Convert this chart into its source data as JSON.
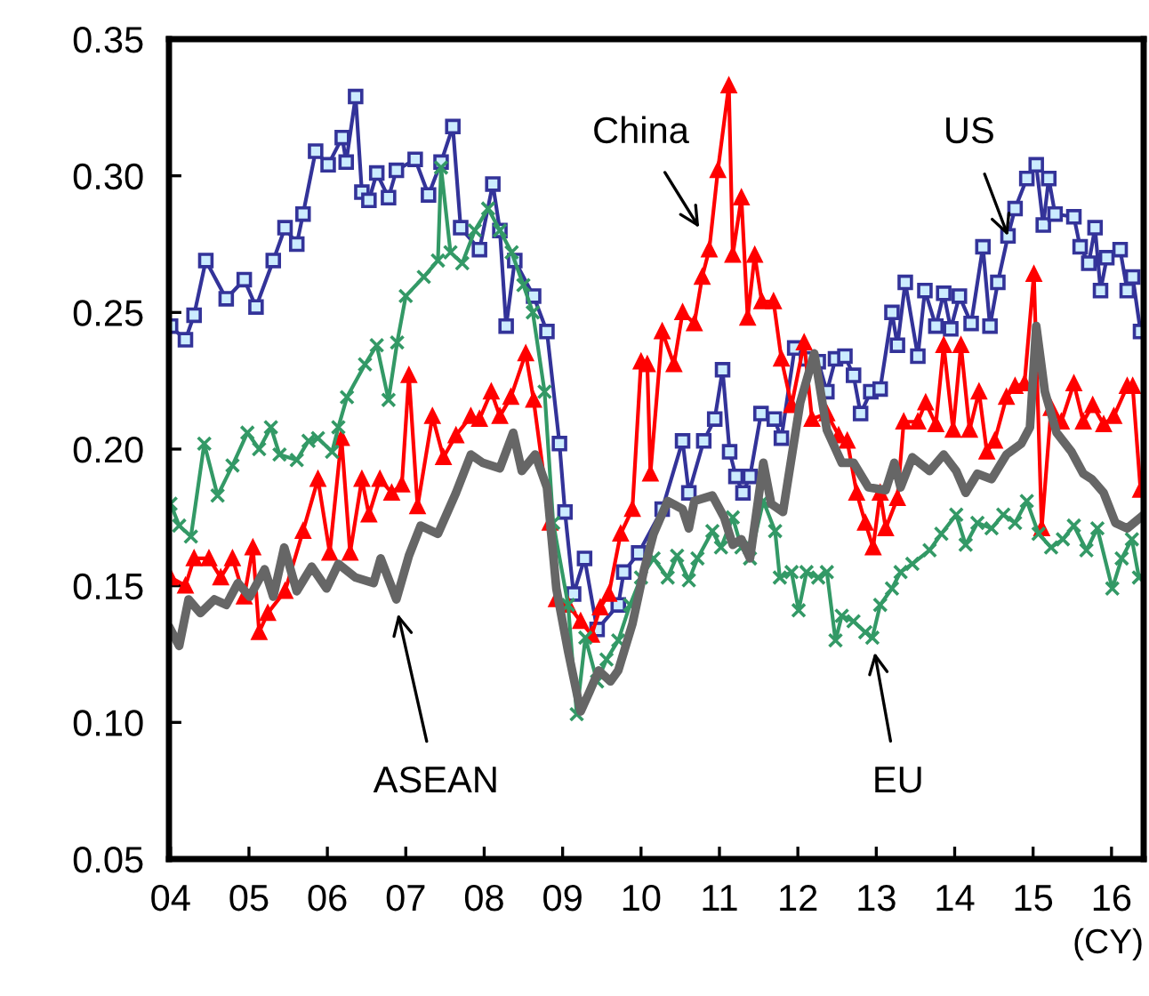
{
  "chart_data": {
    "type": "line",
    "xlabel": "(CY)",
    "xlim": [
      2003.98,
      2016.41
    ],
    "ylim": [
      0.05,
      0.35
    ],
    "xticks": [
      {
        "value": 2004,
        "label": "04"
      },
      {
        "value": 2005,
        "label": "05"
      },
      {
        "value": 2006,
        "label": "06"
      },
      {
        "value": 2007,
        "label": "07"
      },
      {
        "value": 2008,
        "label": "08"
      },
      {
        "value": 2009,
        "label": "09"
      },
      {
        "value": 2010,
        "label": "10"
      },
      {
        "value": 2011,
        "label": "11"
      },
      {
        "value": 2012,
        "label": "12"
      },
      {
        "value": 2013,
        "label": "13"
      },
      {
        "value": 2014,
        "label": "14"
      },
      {
        "value": 2015,
        "label": "15"
      },
      {
        "value": 2016,
        "label": "16"
      }
    ],
    "yticks": [
      {
        "value": 0.05,
        "label": "0.05"
      },
      {
        "value": 0.1,
        "label": "0.10"
      },
      {
        "value": 0.15,
        "label": "0.15"
      },
      {
        "value": 0.2,
        "label": "0.20"
      },
      {
        "value": 0.25,
        "label": "0.25"
      },
      {
        "value": 0.3,
        "label": "0.30"
      },
      {
        "value": 0.35,
        "label": "0.35"
      }
    ],
    "grid": false,
    "legend": false,
    "line_style": "solid",
    "series": [
      {
        "color": "#333399",
        "marker": "square",
        "x": [
          2004.0,
          2004.19,
          2004.3,
          2004.45,
          2004.71,
          2004.94,
          2005.09,
          2005.31,
          2005.46,
          2005.61,
          2005.69,
          2005.85,
          2006.01,
          2006.19,
          2006.24,
          2006.36,
          2006.44,
          2006.53,
          2006.63,
          2006.78,
          2006.88,
          2007.12,
          2007.29,
          2007.45,
          2007.6,
          2007.7,
          2007.94,
          2008.11,
          2008.2,
          2008.28,
          2008.39,
          2008.63,
          2008.8,
          2008.96,
          2009.03,
          2009.14,
          2009.28,
          2009.44,
          2009.71,
          2009.78,
          2009.97,
          2010.27,
          2010.53,
          2010.61,
          2010.8,
          2010.94,
          2011.04,
          2011.13,
          2011.21,
          2011.3,
          2011.39,
          2011.53,
          2011.7,
          2011.79,
          2011.96,
          2012.11,
          2012.26,
          2012.37,
          2012.48,
          2012.6,
          2012.71,
          2012.8,
          2012.93,
          2013.05,
          2013.2,
          2013.27,
          2013.37,
          2013.53,
          2013.62,
          2013.76,
          2013.86,
          2013.95,
          2014.06,
          2014.21,
          2014.36,
          2014.45,
          2014.55,
          2014.68,
          2014.77,
          2014.92,
          2015.04,
          2015.13,
          2015.2,
          2015.28,
          2015.52,
          2015.6,
          2015.71,
          2015.79,
          2015.86,
          2015.94,
          2016.11,
          2016.2,
          2016.27,
          2016.37
        ],
        "values": [
          0.245,
          0.24,
          0.249,
          0.269,
          0.255,
          0.262,
          0.252,
          0.269,
          0.281,
          0.275,
          0.286,
          0.309,
          0.304,
          0.314,
          0.305,
          0.329,
          0.294,
          0.291,
          0.301,
          0.292,
          0.302,
          0.306,
          0.293,
          0.305,
          0.318,
          0.281,
          0.273,
          0.297,
          0.28,
          0.245,
          0.269,
          0.256,
          0.243,
          0.202,
          0.177,
          0.147,
          0.16,
          0.134,
          0.143,
          0.155,
          0.162,
          0.178,
          0.203,
          0.184,
          0.203,
          0.211,
          0.229,
          0.199,
          0.19,
          0.184,
          0.19,
          0.213,
          0.211,
          0.204,
          0.237,
          0.233,
          0.232,
          0.221,
          0.233,
          0.234,
          0.227,
          0.213,
          0.221,
          0.222,
          0.25,
          0.238,
          0.261,
          0.234,
          0.258,
          0.245,
          0.257,
          0.244,
          0.256,
          0.246,
          0.274,
          0.245,
          0.261,
          0.278,
          0.288,
          0.299,
          0.304,
          0.282,
          0.299,
          0.286,
          0.285,
          0.274,
          0.268,
          0.281,
          0.258,
          0.27,
          0.273,
          0.258,
          0.263,
          0.243
        ]
      },
      {
        "color": "#ff0000",
        "marker": "triangle",
        "x": [
          2004.0,
          2004.19,
          2004.3,
          2004.49,
          2004.64,
          2004.79,
          2004.94,
          2005.05,
          2005.13,
          2005.24,
          2005.46,
          2005.69,
          2005.88,
          2006.03,
          2006.18,
          2006.29,
          2006.44,
          2006.53,
          2006.67,
          2006.82,
          2006.95,
          2007.04,
          2007.15,
          2007.34,
          2007.48,
          2007.64,
          2007.83,
          2007.94,
          2008.09,
          2008.2,
          2008.34,
          2008.53,
          2008.63,
          2008.84,
          2008.92,
          2009.07,
          2009.23,
          2009.37,
          2009.48,
          2009.59,
          2009.74,
          2009.89,
          2010.0,
          2010.08,
          2010.12,
          2010.27,
          2010.42,
          2010.53,
          2010.68,
          2010.78,
          2010.87,
          2010.98,
          2011.12,
          2011.17,
          2011.28,
          2011.36,
          2011.45,
          2011.54,
          2011.69,
          2011.79,
          2011.92,
          2012.08,
          2012.18,
          2012.37,
          2012.52,
          2012.63,
          2012.75,
          2012.86,
          2012.96,
          2013.05,
          2013.12,
          2013.27,
          2013.35,
          2013.53,
          2013.63,
          2013.76,
          2013.86,
          2013.98,
          2014.08,
          2014.19,
          2014.31,
          2014.41,
          2014.51,
          2014.66,
          2014.77,
          2014.89,
          2015.01,
          2015.11,
          2015.23,
          2015.36,
          2015.52,
          2015.64,
          2015.76,
          2015.9,
          2016.03,
          2016.2,
          2016.27,
          2016.37
        ],
        "values": [
          0.153,
          0.15,
          0.16,
          0.16,
          0.153,
          0.16,
          0.146,
          0.164,
          0.133,
          0.14,
          0.148,
          0.17,
          0.189,
          0.162,
          0.204,
          0.162,
          0.189,
          0.176,
          0.189,
          0.184,
          0.187,
          0.227,
          0.179,
          0.212,
          0.197,
          0.205,
          0.212,
          0.211,
          0.221,
          0.212,
          0.219,
          0.235,
          0.218,
          0.173,
          0.145,
          0.143,
          0.137,
          0.132,
          0.142,
          0.147,
          0.169,
          0.178,
          0.232,
          0.231,
          0.191,
          0.243,
          0.231,
          0.25,
          0.246,
          0.263,
          0.273,
          0.302,
          0.333,
          0.271,
          0.292,
          0.248,
          0.271,
          0.254,
          0.254,
          0.233,
          0.216,
          0.239,
          0.211,
          0.213,
          0.205,
          0.203,
          0.184,
          0.173,
          0.164,
          0.184,
          0.171,
          0.182,
          0.21,
          0.21,
          0.217,
          0.209,
          0.238,
          0.207,
          0.238,
          0.207,
          0.221,
          0.199,
          0.203,
          0.219,
          0.223,
          0.224,
          0.264,
          0.171,
          0.215,
          0.21,
          0.224,
          0.21,
          0.216,
          0.209,
          0.212,
          0.223,
          0.223,
          0.185
        ]
      },
      {
        "color": "#339966",
        "marker": "cross",
        "x": [
          2004.0,
          2004.11,
          2004.26,
          2004.43,
          2004.6,
          2004.79,
          2004.98,
          2005.13,
          2005.28,
          2005.39,
          2005.61,
          2005.76,
          2005.88,
          2006.06,
          2006.14,
          2006.25,
          2006.48,
          2006.63,
          2006.78,
          2006.89,
          2007.0,
          2007.23,
          2007.41,
          2007.45,
          2007.57,
          2007.72,
          2007.88,
          2008.05,
          2008.2,
          2008.35,
          2008.5,
          2008.62,
          2008.77,
          2008.88,
          2009.07,
          2009.18,
          2009.29,
          2009.44,
          2009.56,
          2009.71,
          2009.86,
          2010.0,
          2010.16,
          2010.34,
          2010.46,
          2010.61,
          2010.72,
          2010.91,
          2011.02,
          2011.17,
          2011.28,
          2011.39,
          2011.56,
          2011.71,
          2011.77,
          2011.92,
          2012.01,
          2012.11,
          2012.26,
          2012.37,
          2012.48,
          2012.56,
          2012.71,
          2012.86,
          2012.95,
          2013.05,
          2013.2,
          2013.31,
          2013.46,
          2013.68,
          2013.83,
          2014.02,
          2014.14,
          2014.29,
          2014.47,
          2014.62,
          2014.77,
          2014.92,
          2015.07,
          2015.23,
          2015.38,
          2015.52,
          2015.68,
          2015.82,
          2016.01,
          2016.13,
          2016.26,
          2016.35
        ],
        "values": [
          0.18,
          0.172,
          0.168,
          0.202,
          0.183,
          0.194,
          0.206,
          0.2,
          0.208,
          0.198,
          0.196,
          0.203,
          0.204,
          0.199,
          0.208,
          0.219,
          0.231,
          0.238,
          0.218,
          0.239,
          0.256,
          0.263,
          0.269,
          0.303,
          0.272,
          0.268,
          0.28,
          0.288,
          0.28,
          0.272,
          0.26,
          0.25,
          0.221,
          0.173,
          0.143,
          0.103,
          0.131,
          0.115,
          0.123,
          0.13,
          0.143,
          0.153,
          0.16,
          0.153,
          0.161,
          0.152,
          0.16,
          0.17,
          0.164,
          0.175,
          0.164,
          0.16,
          0.181,
          0.17,
          0.153,
          0.155,
          0.141,
          0.155,
          0.153,
          0.155,
          0.13,
          0.139,
          0.137,
          0.133,
          0.131,
          0.143,
          0.149,
          0.155,
          0.158,
          0.163,
          0.169,
          0.176,
          0.165,
          0.173,
          0.171,
          0.176,
          0.173,
          0.181,
          0.169,
          0.164,
          0.167,
          0.172,
          0.163,
          0.171,
          0.149,
          0.16,
          0.167,
          0.153
        ]
      },
      {
        "color": "#666666",
        "marker": "none",
        "x": [
          2004.0,
          2004.11,
          2004.23,
          2004.38,
          2004.56,
          2004.71,
          2004.86,
          2005.01,
          2005.2,
          2005.31,
          2005.45,
          2005.61,
          2005.8,
          2005.99,
          2006.14,
          2006.36,
          2006.59,
          2006.68,
          2006.88,
          2007.04,
          2007.19,
          2007.41,
          2007.64,
          2007.83,
          2007.98,
          2008.2,
          2008.37,
          2008.48,
          2008.65,
          2008.8,
          2008.92,
          2009.07,
          2009.23,
          2009.34,
          2009.46,
          2009.61,
          2009.71,
          2009.89,
          2010.04,
          2010.16,
          2010.34,
          2010.53,
          2010.61,
          2010.68,
          2010.91,
          2011.06,
          2011.17,
          2011.28,
          2011.39,
          2011.56,
          2011.66,
          2011.81,
          2012.03,
          2012.21,
          2012.37,
          2012.56,
          2012.71,
          2012.9,
          2013.12,
          2013.23,
          2013.31,
          2013.46,
          2013.68,
          2013.86,
          2014.02,
          2014.14,
          2014.29,
          2014.47,
          2014.66,
          2014.85,
          2014.96,
          2015.04,
          2015.15,
          2015.3,
          2015.49,
          2015.64,
          2015.75,
          2015.9,
          2016.05,
          2016.2,
          2016.37
        ],
        "values": [
          0.134,
          0.128,
          0.145,
          0.14,
          0.145,
          0.143,
          0.151,
          0.146,
          0.156,
          0.146,
          0.164,
          0.148,
          0.157,
          0.149,
          0.158,
          0.153,
          0.151,
          0.16,
          0.145,
          0.161,
          0.172,
          0.169,
          0.184,
          0.198,
          0.195,
          0.193,
          0.206,
          0.192,
          0.198,
          0.186,
          0.149,
          0.126,
          0.104,
          0.111,
          0.119,
          0.115,
          0.119,
          0.136,
          0.156,
          0.169,
          0.181,
          0.178,
          0.171,
          0.181,
          0.183,
          0.175,
          0.165,
          0.167,
          0.16,
          0.195,
          0.18,
          0.177,
          0.217,
          0.235,
          0.207,
          0.195,
          0.195,
          0.186,
          0.185,
          0.195,
          0.186,
          0.197,
          0.192,
          0.198,
          0.192,
          0.184,
          0.191,
          0.189,
          0.198,
          0.202,
          0.208,
          0.245,
          0.221,
          0.206,
          0.199,
          0.191,
          0.189,
          0.184,
          0.173,
          0.171,
          0.175
        ]
      }
    ],
    "annotations": [
      "China",
      {
        "text": "US",
        "x": 2014.68,
        "y": 0.278
      },
      "ASEAN",
      "EU"
    ]
  }
}
